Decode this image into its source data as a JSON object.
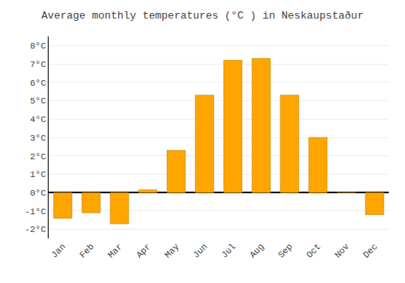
{
  "chart_data": {
    "type": "bar",
    "title": "Average monthly temperatures (°C ) in Neskaupstaður",
    "categories": [
      "Jan",
      "Feb",
      "Mar",
      "Apr",
      "May",
      "Jun",
      "Jul",
      "Aug",
      "Sep",
      "Oct",
      "Nov",
      "Dec"
    ],
    "values": [
      -1.4,
      -1.1,
      -1.7,
      0.15,
      2.3,
      5.3,
      7.2,
      7.3,
      5.3,
      3.0,
      0.0,
      -1.2
    ],
    "color": "#FFA500",
    "ylim": [
      -2.5,
      8.5
    ],
    "yticks": [
      {
        "value": -2,
        "label": "-2°C"
      },
      {
        "value": -1,
        "label": "-1°C"
      },
      {
        "value": 0,
        "label": "0°C"
      },
      {
        "value": 1,
        "label": "1°C"
      },
      {
        "value": 2,
        "label": "2°C"
      },
      {
        "value": 3,
        "label": "3°C"
      },
      {
        "value": 4,
        "label": "4°C"
      },
      {
        "value": 5,
        "label": "5°C"
      },
      {
        "value": 6,
        "label": "6°C"
      },
      {
        "value": 7,
        "label": "7°C"
      },
      {
        "value": 8,
        "label": "8°C"
      }
    ],
    "grid": true
  }
}
